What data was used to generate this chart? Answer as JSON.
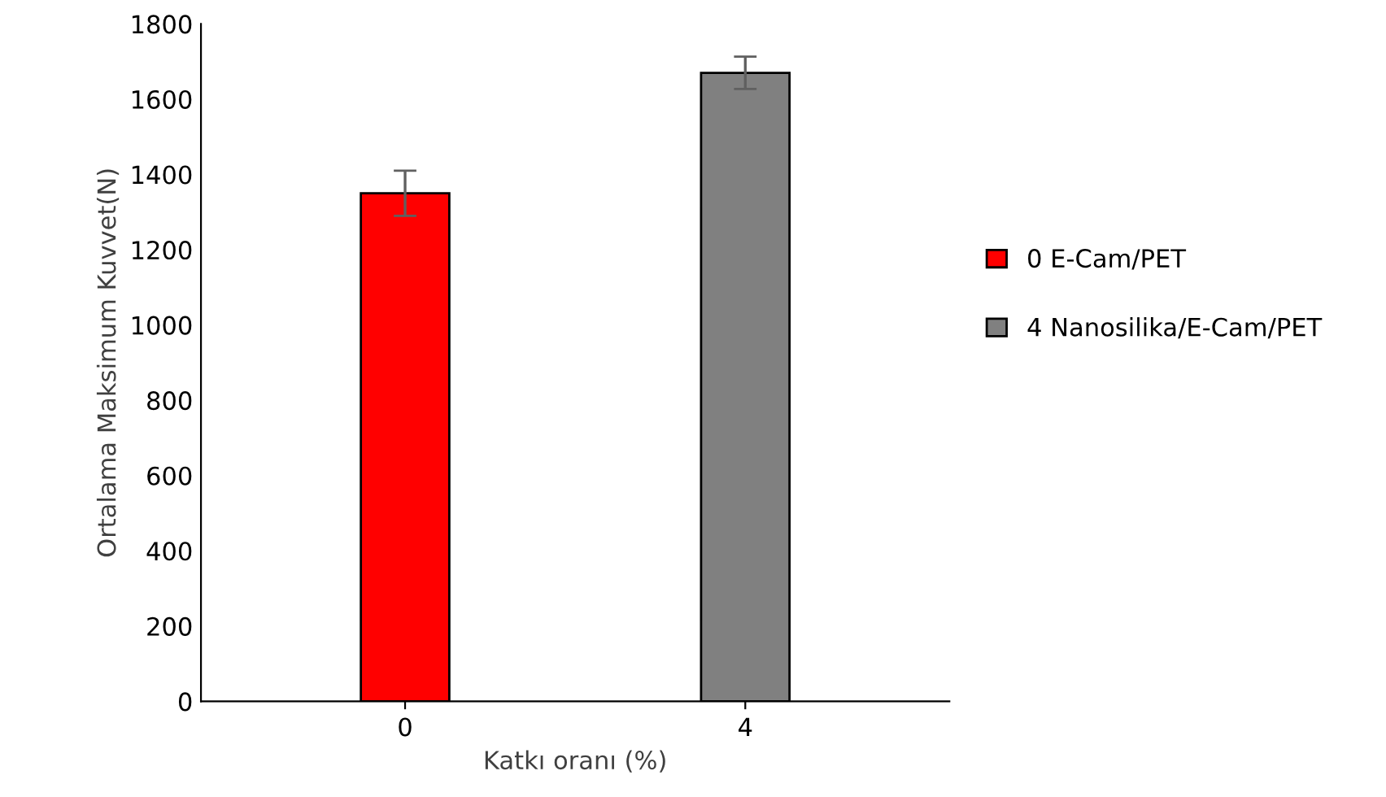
{
  "chart_data": {
    "type": "bar",
    "xlabel": "Katkı oranı (%)",
    "ylabel": "Ortalama Maksimum Kuvvet(N)",
    "categories": [
      "0",
      "4"
    ],
    "series": [
      {
        "name": "0 E-Cam/PET",
        "color": "#ff0000",
        "values": [
          1350,
          null
        ],
        "errors": [
          60,
          null
        ]
      },
      {
        "name": "4 Nanosilika/E-Cam/PET",
        "color": "#808080",
        "values": [
          null,
          1670
        ],
        "errors": [
          null,
          43
        ]
      }
    ],
    "ylim": [
      0,
      1800
    ],
    "yticks": [
      0,
      200,
      400,
      600,
      800,
      1000,
      1200,
      1400,
      1600,
      1800
    ],
    "grid": false,
    "legend": "right"
  }
}
